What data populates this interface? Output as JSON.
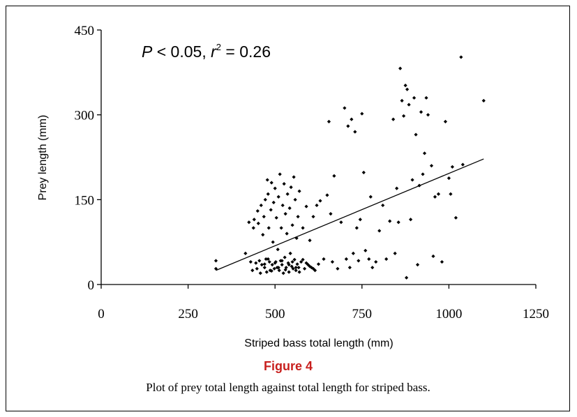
{
  "chart_data": {
    "type": "scatter",
    "xlabel": "Striped bass total length (mm)",
    "ylabel": "Prey length (mm)",
    "xlim": [
      0,
      1250
    ],
    "ylim": [
      0,
      450
    ],
    "xticks": [
      "0",
      "250",
      "500",
      "750",
      "1000",
      "1250"
    ],
    "yticks": [
      "0",
      "150",
      "300",
      "450"
    ],
    "grid": false,
    "annotation": {
      "p_part": "P",
      "p_rest": " < 0.05, ",
      "r_part": "r",
      "r_sup": "2",
      "r_rest": " = 0.26"
    },
    "regression_line": {
      "x1": 330,
      "y1": 25,
      "x2": 1100,
      "y2": 222
    },
    "points": [
      [
        330,
        42
      ],
      [
        330,
        28
      ],
      [
        415,
        55
      ],
      [
        425,
        110
      ],
      [
        430,
        40
      ],
      [
        435,
        25
      ],
      [
        438,
        100
      ],
      [
        440,
        115
      ],
      [
        445,
        38
      ],
      [
        448,
        28
      ],
      [
        450,
        130
      ],
      [
        452,
        108
      ],
      [
        455,
        42
      ],
      [
        458,
        20
      ],
      [
        460,
        140
      ],
      [
        462,
        35
      ],
      [
        465,
        88
      ],
      [
        468,
        120
      ],
      [
        470,
        30
      ],
      [
        472,
        150
      ],
      [
        474,
        45
      ],
      [
        476,
        22
      ],
      [
        478,
        185
      ],
      [
        480,
        160
      ],
      [
        482,
        100
      ],
      [
        484,
        40
      ],
      [
        486,
        25
      ],
      [
        488,
        132
      ],
      [
        490,
        180
      ],
      [
        492,
        35
      ],
      [
        494,
        75
      ],
      [
        496,
        145
      ],
      [
        498,
        28
      ],
      [
        500,
        170
      ],
      [
        502,
        40
      ],
      [
        504,
        118
      ],
      [
        506,
        30
      ],
      [
        508,
        62
      ],
      [
        510,
        155
      ],
      [
        512,
        25
      ],
      [
        514,
        195
      ],
      [
        516,
        42
      ],
      [
        518,
        100
      ],
      [
        520,
        35
      ],
      [
        522,
        140
      ],
      [
        524,
        20
      ],
      [
        526,
        178
      ],
      [
        528,
        48
      ],
      [
        530,
        125
      ],
      [
        532,
        30
      ],
      [
        534,
        90
      ],
      [
        536,
        160
      ],
      [
        538,
        38
      ],
      [
        540,
        22
      ],
      [
        542,
        135
      ],
      [
        544,
        55
      ],
      [
        546,
        172
      ],
      [
        548,
        32
      ],
      [
        550,
        105
      ],
      [
        552,
        28
      ],
      [
        554,
        190
      ],
      [
        556,
        44
      ],
      [
        558,
        150
      ],
      [
        560,
        25
      ],
      [
        562,
        82
      ],
      [
        564,
        36
      ],
      [
        566,
        120
      ],
      [
        568,
        30
      ],
      [
        570,
        165
      ],
      [
        575,
        40
      ],
      [
        580,
        100
      ],
      [
        585,
        28
      ],
      [
        590,
        138
      ],
      [
        595,
        35
      ],
      [
        600,
        78
      ],
      [
        605,
        30
      ],
      [
        610,
        120
      ],
      [
        615,
        25
      ],
      [
        620,
        140
      ],
      [
        625,
        36
      ],
      [
        630,
        148
      ],
      [
        640,
        45
      ],
      [
        650,
        158
      ],
      [
        655,
        288
      ],
      [
        660,
        125
      ],
      [
        665,
        40
      ],
      [
        670,
        192
      ],
      [
        680,
        28
      ],
      [
        690,
        110
      ],
      [
        700,
        312
      ],
      [
        705,
        45
      ],
      [
        710,
        280
      ],
      [
        715,
        30
      ],
      [
        720,
        292
      ],
      [
        725,
        55
      ],
      [
        730,
        270
      ],
      [
        735,
        100
      ],
      [
        740,
        42
      ],
      [
        745,
        115
      ],
      [
        750,
        302
      ],
      [
        755,
        198
      ],
      [
        760,
        60
      ],
      [
        770,
        45
      ],
      [
        775,
        155
      ],
      [
        780,
        30
      ],
      [
        790,
        40
      ],
      [
        800,
        95
      ],
      [
        810,
        140
      ],
      [
        820,
        45
      ],
      [
        830,
        112
      ],
      [
        840,
        292
      ],
      [
        845,
        55
      ],
      [
        850,
        170
      ],
      [
        855,
        110
      ],
      [
        860,
        382
      ],
      [
        865,
        325
      ],
      [
        870,
        298
      ],
      [
        875,
        352
      ],
      [
        878,
        12
      ],
      [
        880,
        345
      ],
      [
        885,
        318
      ],
      [
        890,
        115
      ],
      [
        895,
        185
      ],
      [
        900,
        330
      ],
      [
        905,
        265
      ],
      [
        910,
        35
      ],
      [
        915,
        175
      ],
      [
        920,
        305
      ],
      [
        925,
        195
      ],
      [
        930,
        232
      ],
      [
        935,
        330
      ],
      [
        940,
        300
      ],
      [
        950,
        210
      ],
      [
        955,
        50
      ],
      [
        960,
        155
      ],
      [
        970,
        160
      ],
      [
        980,
        40
      ],
      [
        990,
        288
      ],
      [
        1000,
        188
      ],
      [
        1005,
        160
      ],
      [
        1010,
        208
      ],
      [
        1020,
        118
      ],
      [
        1035,
        402
      ],
      [
        1040,
        212
      ],
      [
        1100,
        325
      ],
      [
        480,
        45
      ],
      [
        500,
        38
      ],
      [
        520,
        42
      ],
      [
        540,
        35
      ],
      [
        560,
        30
      ],
      [
        580,
        44
      ],
      [
        600,
        32
      ],
      [
        470,
        36
      ],
      [
        490,
        24
      ],
      [
        510,
        30
      ],
      [
        530,
        26
      ],
      [
        550,
        40
      ],
      [
        570,
        22
      ],
      [
        590,
        38
      ],
      [
        610,
        28
      ]
    ]
  },
  "figure": {
    "title": "Figure 4",
    "caption": "Plot of prey total length against total length for striped bass."
  }
}
